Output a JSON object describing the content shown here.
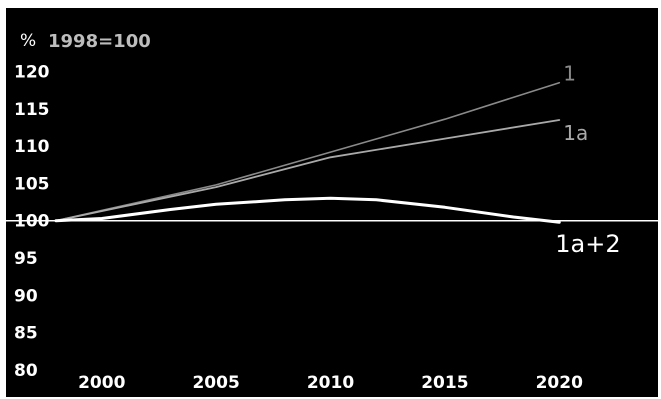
{
  "chart_data": {
    "type": "line",
    "unit_label": "%",
    "base_label": "1998=100",
    "x_ticks": [
      "2000",
      "2005",
      "2010",
      "2015",
      "2020"
    ],
    "y_ticks": [
      "120",
      "115",
      "110",
      "105",
      "100",
      "95",
      "90",
      "85",
      "80"
    ],
    "xlim": [
      1998,
      2022
    ],
    "ylim": [
      80,
      121
    ],
    "series": [
      {
        "name": "1",
        "color": "#8a8a8a",
        "x": [
          1998,
          2005,
          2010,
          2015,
          2020
        ],
        "y": [
          100,
          104.8,
          109.2,
          113.6,
          118.5
        ]
      },
      {
        "name": "1a",
        "color": "#a9a9a9",
        "x": [
          1998,
          2005,
          2010,
          2015,
          2020
        ],
        "y": [
          100,
          104.5,
          108.5,
          111.0,
          113.5
        ]
      },
      {
        "name": "1a+2",
        "color": "#ffffff",
        "x": [
          1998,
          2000,
          2003,
          2005,
          2008,
          2010,
          2012,
          2015,
          2018,
          2020
        ],
        "y": [
          100,
          100.3,
          101.5,
          102.2,
          102.8,
          103.0,
          102.8,
          101.8,
          100.5,
          99.8
        ]
      }
    ],
    "reference_line": {
      "y": 100,
      "color": "#ffffff"
    },
    "legend": "inline labels at right end of lines",
    "grid": false
  }
}
